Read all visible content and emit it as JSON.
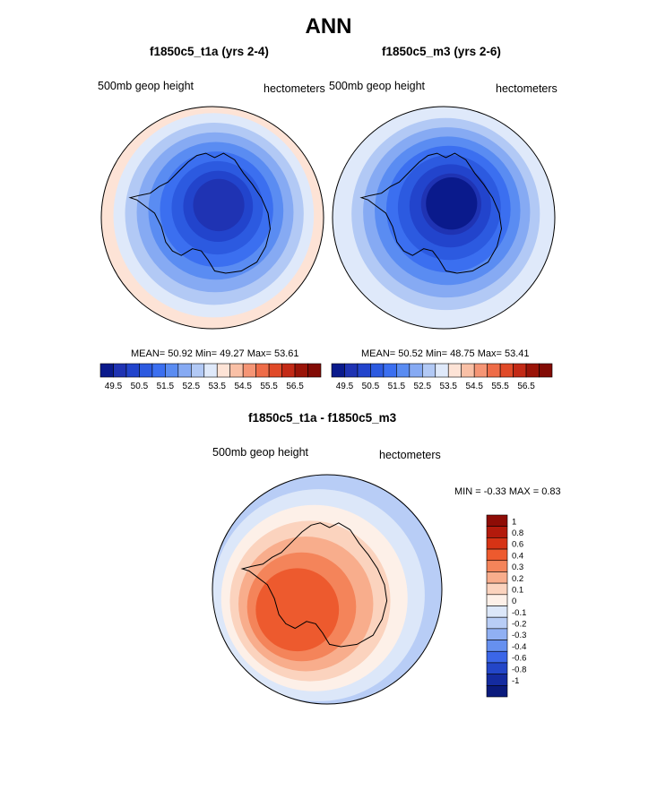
{
  "page_title": "ANN",
  "chart_data": [
    {
      "type": "heatmap",
      "projection": "south-polar-stereographic",
      "title": "f1850c5_t1a (yrs 2-4)",
      "left_label": "500mb geop height",
      "right_label": "hectometers",
      "stats": {
        "mean_label": "MEAN=",
        "mean": "50.92",
        "min_label": "Min=",
        "min": "49.27",
        "max_label": "Max=",
        "max": "53.61"
      },
      "colorbar": {
        "orientation": "horizontal",
        "labels": [
          "49.5",
          "50.5",
          "51.5",
          "52.5",
          "53.5",
          "54.5",
          "55.5",
          "56.5"
        ],
        "levels": [
          49.0,
          49.5,
          50.0,
          50.5,
          51.0,
          51.5,
          52.0,
          52.5,
          53.0,
          53.5,
          54.0,
          54.5,
          55.0,
          55.5,
          56.0,
          56.5
        ],
        "colors": [
          "#0a1a8c",
          "#1f33b3",
          "#2244cc",
          "#2c5ae0",
          "#3b6ff0",
          "#5a8cf2",
          "#86aaf3",
          "#b2c9f5",
          "#dfe9fa",
          "#fde3d6",
          "#f9c0a6",
          "#f59575",
          "#ee6c48",
          "#e04a28",
          "#c32a16",
          "#9a1408",
          "#820b05"
        ]
      },
      "rings": [
        {
          "value": 53.6,
          "color": "#fde3d6"
        },
        {
          "value": 53.0,
          "color": "#dfe9fa"
        },
        {
          "value": 52.5,
          "color": "#b2c9f5"
        },
        {
          "value": 52.0,
          "color": "#86aaf3"
        },
        {
          "value": 51.5,
          "color": "#5a8cf2"
        },
        {
          "value": 51.0,
          "color": "#3b6ff0"
        },
        {
          "value": 50.5,
          "color": "#2c5ae0"
        },
        {
          "value": 50.0,
          "color": "#2244cc"
        },
        {
          "value": 49.5,
          "color": "#1f33b3"
        }
      ]
    },
    {
      "type": "heatmap",
      "projection": "south-polar-stereographic",
      "title": "f1850c5_m3 (yrs 2-6)",
      "left_label": "500mb geop height",
      "right_label": "hectometers",
      "stats": {
        "mean_label": "MEAN=",
        "mean": "50.52",
        "min_label": "Min=",
        "min": "48.75",
        "max_label": "Max=",
        "max": "53.41"
      },
      "colorbar": {
        "orientation": "horizontal",
        "labels": [
          "49.5",
          "50.5",
          "51.5",
          "52.5",
          "53.5",
          "54.5",
          "55.5",
          "56.5"
        ],
        "levels": [
          49.0,
          49.5,
          50.0,
          50.5,
          51.0,
          51.5,
          52.0,
          52.5,
          53.0,
          53.5,
          54.0,
          54.5,
          55.0,
          55.5,
          56.0,
          56.5
        ],
        "colors": [
          "#0a1a8c",
          "#1f33b3",
          "#2244cc",
          "#2c5ae0",
          "#3b6ff0",
          "#5a8cf2",
          "#86aaf3",
          "#b2c9f5",
          "#dfe9fa",
          "#fde3d6",
          "#f9c0a6",
          "#f59575",
          "#ee6c48",
          "#e04a28",
          "#c32a16",
          "#9a1408",
          "#820b05"
        ]
      },
      "rings": [
        {
          "value": 53.4,
          "color": "#dfe9fa"
        },
        {
          "value": 52.5,
          "color": "#b2c9f5"
        },
        {
          "value": 52.0,
          "color": "#86aaf3"
        },
        {
          "value": 51.5,
          "color": "#5a8cf2"
        },
        {
          "value": 51.0,
          "color": "#3b6ff0"
        },
        {
          "value": 50.5,
          "color": "#2c5ae0"
        },
        {
          "value": 50.0,
          "color": "#2244cc"
        },
        {
          "value": 49.5,
          "color": "#1f33b3"
        },
        {
          "value": 49.0,
          "color": "#0a1a8c"
        }
      ]
    },
    {
      "type": "heatmap",
      "projection": "south-polar-stereographic",
      "title": "f1850c5_t1a - f1850c5_m3",
      "left_label": "500mb geop height",
      "right_label": "hectometers",
      "stats": {
        "min_label": "MIN =",
        "min": "-0.33",
        "max_label": "MAX =",
        "max": "0.83"
      },
      "colorbar": {
        "orientation": "vertical",
        "labels": [
          "1",
          "0.8",
          "0.6",
          "0.4",
          "0.3",
          "0.2",
          "0.1",
          "0",
          "-0.1",
          "-0.2",
          "-0.3",
          "-0.4",
          "-0.6",
          "-0.8",
          "-1"
        ],
        "colors": [
          "#8e0c06",
          "#b31a0c",
          "#d63315",
          "#ed5a2e",
          "#f4845a",
          "#f8ad8c",
          "#fbd3be",
          "#fdf0e8",
          "#dce7f9",
          "#b8cdf6",
          "#90b0f3",
          "#6690ef",
          "#3b66e8",
          "#2346c8",
          "#142ba0",
          "#0a1a7c"
        ]
      },
      "rings": [
        {
          "value": -0.2,
          "color": "#90b0f3"
        },
        {
          "value": -0.1,
          "color": "#b8cdf6"
        },
        {
          "value": 0.0,
          "color": "#dce7f9"
        },
        {
          "value": 0.1,
          "color": "#fdf0e8"
        },
        {
          "value": 0.2,
          "color": "#fbd3be"
        },
        {
          "value": 0.3,
          "color": "#f8ad8c"
        },
        {
          "value": 0.4,
          "color": "#f4845a"
        },
        {
          "value": 0.6,
          "color": "#ed5a2e"
        }
      ]
    }
  ]
}
